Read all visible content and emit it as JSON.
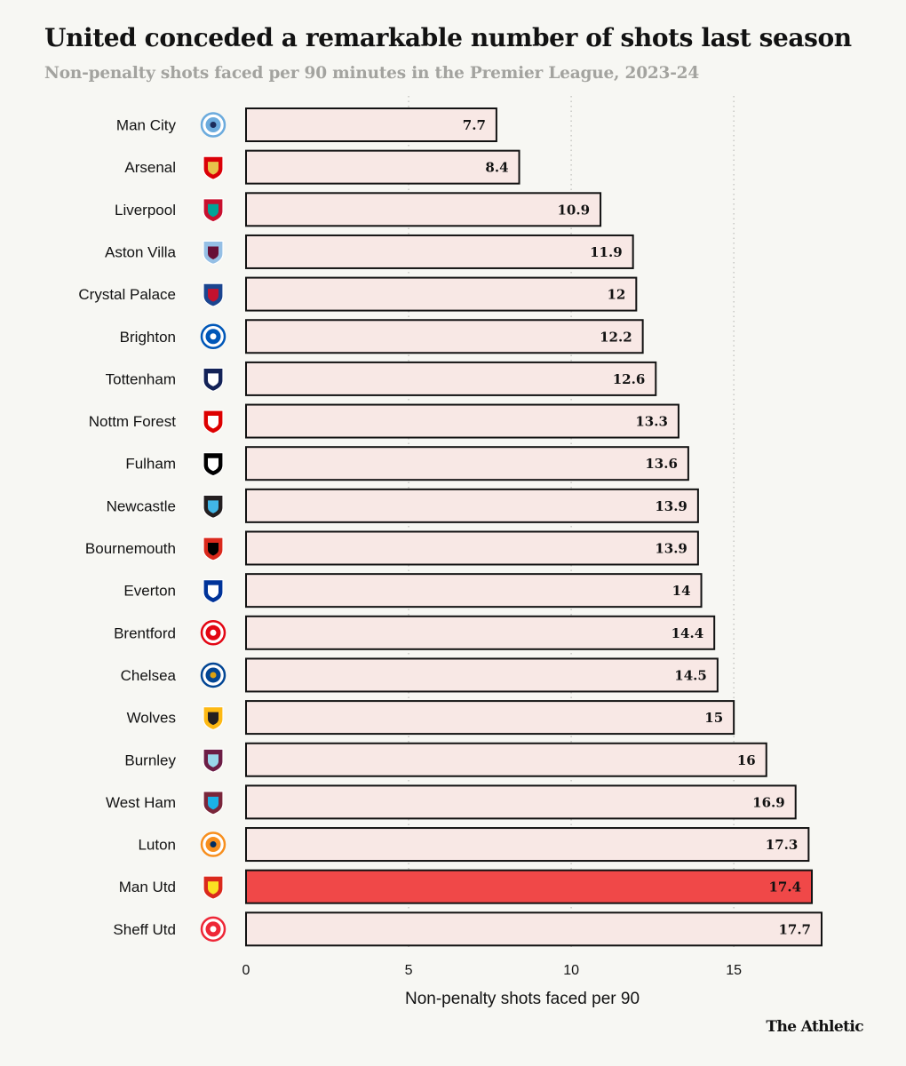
{
  "header": {
    "title": "United conceded a remarkable number of shots last season",
    "subtitle": "Non-penalty shots faced per 90 minutes in the Premier League, 2023-24"
  },
  "brand": "The Athletic",
  "colors": {
    "bar_fill": "#f8e8e5",
    "bar_highlight": "#f04848",
    "bar_stroke": "#121212",
    "grid": "#c8c8c4"
  },
  "chart_data": {
    "type": "bar",
    "orientation": "horizontal",
    "categories": [
      "Man City",
      "Arsenal",
      "Liverpool",
      "Aston Villa",
      "Crystal Palace",
      "Brighton",
      "Tottenham",
      "Nottm Forest",
      "Fulham",
      "Newcastle",
      "Bournemouth",
      "Everton",
      "Brentford",
      "Chelsea",
      "Wolves",
      "Burnley",
      "West Ham",
      "Luton",
      "Man Utd",
      "Sheff Utd"
    ],
    "values": [
      7.7,
      8.4,
      10.9,
      11.9,
      12,
      12.2,
      12.6,
      13.3,
      13.6,
      13.9,
      13.9,
      14,
      14.4,
      14.5,
      15,
      16,
      16.9,
      17.3,
      17.4,
      17.7
    ],
    "value_labels": [
      "7.7",
      "8.4",
      "10.9",
      "11.9",
      "12",
      "12.2",
      "12.6",
      "13.3",
      "13.6",
      "13.9",
      "13.9",
      "14",
      "14.4",
      "14.5",
      "15",
      "16",
      "16.9",
      "17.3",
      "17.4",
      "17.7"
    ],
    "highlight": "Man Utd",
    "xlabel": "Non-penalty shots faced per 90",
    "xlim": [
      0,
      17.7
    ],
    "xticks": [
      0,
      5,
      10,
      15
    ],
    "xtick_labels": [
      "0",
      "5",
      "10",
      "15"
    ],
    "grid": true,
    "logos": [
      {
        "name": "man-city-crest-icon",
        "color": "#6cabdd",
        "accent": "#1c2c5b",
        "shape": "circle"
      },
      {
        "name": "arsenal-crest-icon",
        "color": "#db0007",
        "accent": "#e8c14a",
        "shape": "shield"
      },
      {
        "name": "liverpool-crest-icon",
        "color": "#c8102e",
        "accent": "#00a398",
        "shape": "shield"
      },
      {
        "name": "aston-villa-crest-icon",
        "color": "#95bfe5",
        "accent": "#670e36",
        "shape": "shield"
      },
      {
        "name": "crystal-palace-crest-icon",
        "color": "#1b458f",
        "accent": "#c4122e",
        "shape": "shield"
      },
      {
        "name": "brighton-crest-icon",
        "color": "#0057b8",
        "accent": "#ffffff",
        "shape": "circle"
      },
      {
        "name": "tottenham-crest-icon",
        "color": "#132257",
        "accent": "#ffffff",
        "shape": "shield"
      },
      {
        "name": "nottm-forest-crest-icon",
        "color": "#dd0000",
        "accent": "#ffffff",
        "shape": "shield"
      },
      {
        "name": "fulham-crest-icon",
        "color": "#000000",
        "accent": "#ffffff",
        "shape": "shield"
      },
      {
        "name": "newcastle-crest-icon",
        "color": "#241f20",
        "accent": "#41b6e6",
        "shape": "shield"
      },
      {
        "name": "bournemouth-crest-icon",
        "color": "#da291c",
        "accent": "#000000",
        "shape": "shield"
      },
      {
        "name": "everton-crest-icon",
        "color": "#003399",
        "accent": "#ffffff",
        "shape": "shield"
      },
      {
        "name": "brentford-crest-icon",
        "color": "#e30613",
        "accent": "#ffffff",
        "shape": "circle"
      },
      {
        "name": "chelsea-crest-icon",
        "color": "#034694",
        "accent": "#dba111",
        "shape": "circle"
      },
      {
        "name": "wolves-crest-icon",
        "color": "#fdb913",
        "accent": "#231f20",
        "shape": "shield"
      },
      {
        "name": "burnley-crest-icon",
        "color": "#6c1d45",
        "accent": "#99d6ea",
        "shape": "shield"
      },
      {
        "name": "west-ham-crest-icon",
        "color": "#7a263a",
        "accent": "#1bb1e7",
        "shape": "shield"
      },
      {
        "name": "luton-crest-icon",
        "color": "#f78f1e",
        "accent": "#002d62",
        "shape": "circle"
      },
      {
        "name": "man-utd-crest-icon",
        "color": "#da291c",
        "accent": "#fbe122",
        "shape": "shield"
      },
      {
        "name": "sheff-utd-crest-icon",
        "color": "#ee2737",
        "accent": "#ffffff",
        "shape": "circle"
      }
    ]
  }
}
